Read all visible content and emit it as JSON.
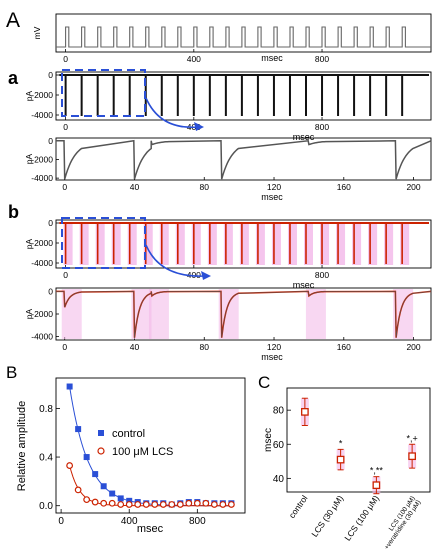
{
  "panel_labels": {
    "A": "A",
    "a": "a",
    "b": "b",
    "B": "B",
    "C": "C"
  },
  "colors": {
    "control": "#2a4fd6",
    "lcs": "#cc2200",
    "lcs_fill": "#f3b6e8",
    "trace": "#555555",
    "box": "#2a4fd6",
    "arrow": "#2a4fd6",
    "axis": "#000000"
  },
  "chart_data": [
    {
      "id": "stim",
      "type": "line",
      "ylabel": "mV",
      "xlabel": "msec",
      "xlim": [
        -30,
        1140
      ],
      "yticks": [],
      "xticks": [
        0,
        400,
        800
      ],
      "xtick_labels": [
        "0",
        "400",
        "800"
      ],
      "pulse_period_ms": 50,
      "pulse_width_ms": 10,
      "n_pulses": 22
    },
    {
      "id": "a_train",
      "type": "line",
      "ylabel": "pA",
      "xlabel": "msec",
      "xlim": [
        -30,
        1140
      ],
      "ylim": [
        -4500,
        300
      ],
      "yticks": [
        0,
        -2000,
        -4000
      ],
      "ytick_labels": [
        "0",
        "-2000",
        "-4000"
      ],
      "xticks": [
        0,
        400,
        800
      ],
      "xtick_labels": [
        "0",
        "400",
        "800"
      ],
      "peak_amplitude_pA": -4100,
      "pulse_period_ms": 50,
      "n_pulses": 22
    },
    {
      "id": "a_zoom",
      "type": "line",
      "ylabel": "pA",
      "xlabel": "msec",
      "xlim": [
        -5,
        210
      ],
      "ylim": [
        -4200,
        300
      ],
      "yticks": [
        0,
        -2000,
        -4000
      ],
      "ytick_labels": [
        "0",
        "-2000",
        "-4000"
      ],
      "xticks": [
        0,
        40,
        80,
        120,
        160,
        200
      ],
      "xtick_labels": [
        "0",
        "40",
        "80",
        "120",
        "160",
        "200"
      ],
      "events_ms": [
        0,
        40,
        50,
        90,
        140,
        190
      ],
      "events_pA": [
        -4100,
        -4100,
        -400,
        -4100,
        -400,
        -4100
      ]
    },
    {
      "id": "b_train",
      "type": "line",
      "ylabel": "pA",
      "xlabel": "msec",
      "xlim": [
        -30,
        1140
      ],
      "ylim": [
        -4500,
        300
      ],
      "yticks": [
        0,
        -2000,
        -4000
      ],
      "ytick_labels": [
        "0",
        "-2000",
        "-4000"
      ],
      "xticks": [
        0,
        400,
        800
      ],
      "xtick_labels": [
        "0",
        "400",
        "800"
      ],
      "peak_amplitude_pA": -4100,
      "pulse_period_ms": 50,
      "n_pulses": 22
    },
    {
      "id": "b_zoom",
      "type": "line",
      "ylabel": "pA",
      "xlabel": "msec",
      "xlim": [
        -5,
        210
      ],
      "ylim": [
        -4300,
        300
      ],
      "yticks": [
        0,
        -2000,
        -4000
      ],
      "ytick_labels": [
        "0",
        "-2000",
        "-4000"
      ],
      "xticks": [
        0,
        40,
        80,
        120,
        160,
        200
      ],
      "xtick_labels": [
        "0",
        "40",
        "80",
        "120",
        "160",
        "200"
      ],
      "events_ms": [
        0,
        40,
        50,
        90,
        140,
        190
      ],
      "events_pA": [
        -1400,
        -4100,
        -400,
        -4100,
        -400,
        -4100
      ]
    },
    {
      "id": "B",
      "type": "scatter",
      "xlabel": "msec",
      "ylabel": "Relative amplitude",
      "xlim": [
        -30,
        1080
      ],
      "ylim": [
        -0.06,
        1.05
      ],
      "xticks": [
        0,
        400,
        800
      ],
      "xtick_labels": [
        "0",
        "400",
        "800"
      ],
      "yticks": [
        0.0,
        0.4,
        0.8
      ],
      "ytick_labels": [
        "0.0",
        "0.4",
        "0.8"
      ],
      "legend_position": "center-right",
      "series": [
        {
          "name": "control",
          "marker": "filled-square",
          "x": [
            50,
            100,
            150,
            200,
            250,
            300,
            350,
            400,
            450,
            500,
            550,
            600,
            650,
            700,
            750,
            800,
            850,
            900,
            950,
            1000
          ],
          "y": [
            0.98,
            0.63,
            0.4,
            0.26,
            0.16,
            0.1,
            0.06,
            0.04,
            0.03,
            0.02,
            0.02,
            0.02,
            0.01,
            0.02,
            0.03,
            0.03,
            0.02,
            0.02,
            0.02,
            0.02
          ],
          "fit_tau_ms": 110
        },
        {
          "name": "100 μM LCS",
          "marker": "open-circle",
          "x": [
            50,
            100,
            150,
            200,
            250,
            300,
            350,
            400,
            450,
            500,
            550,
            600,
            650,
            700,
            750,
            800,
            850,
            900,
            950,
            1000
          ],
          "y": [
            0.33,
            0.13,
            0.05,
            0.03,
            0.02,
            0.02,
            0.01,
            0.01,
            0.01,
            0.01,
            0.01,
            0.01,
            0.01,
            0.01,
            0.02,
            0.02,
            0.02,
            0.01,
            0.01,
            0.01
          ],
          "fit_tau_ms": 60
        }
      ]
    },
    {
      "id": "C",
      "type": "scatter",
      "ylabel": "msec",
      "ylim": [
        32,
        93
      ],
      "yticks": [
        40,
        60,
        80
      ],
      "ytick_labels": [
        "40",
        "60",
        "80"
      ],
      "categories": [
        "control",
        "LCS (30 μM)",
        "LCS (100 μM)",
        "LCS (100 μM)\n+veratridine (30 μM)"
      ],
      "values": [
        79,
        51,
        36,
        53
      ],
      "errors": [
        8,
        6,
        5,
        7
      ],
      "significance": [
        "",
        "*",
        "*,**",
        "*,+"
      ]
    }
  ]
}
